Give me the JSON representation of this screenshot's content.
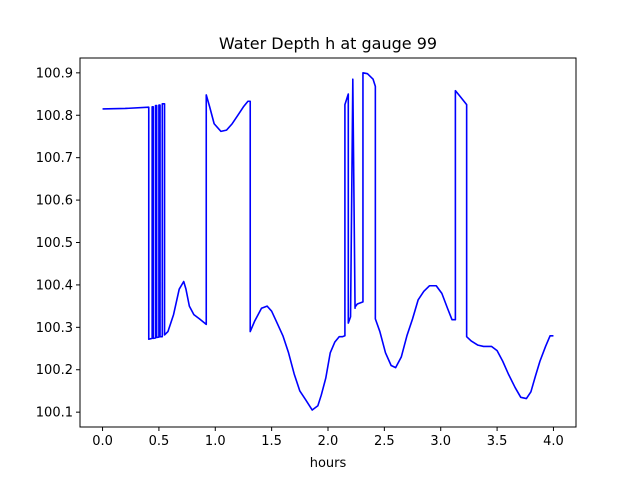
{
  "chart_data": {
    "type": "line",
    "title": "Water Depth h at gauge 99",
    "xlabel": "hours",
    "ylabel": "",
    "xlim": [
      -0.2,
      4.2
    ],
    "ylim": [
      100.065,
      100.935
    ],
    "xticks": [
      0.0,
      0.5,
      1.0,
      1.5,
      2.0,
      2.5,
      3.0,
      3.5,
      4.0
    ],
    "xtick_labels": [
      "0.0",
      "0.5",
      "1.0",
      "1.5",
      "2.0",
      "2.5",
      "3.0",
      "3.5",
      "4.0"
    ],
    "yticks": [
      100.1,
      100.2,
      100.3,
      100.4,
      100.5,
      100.6,
      100.7,
      100.8,
      100.9
    ],
    "ytick_labels": [
      "100.1",
      "100.2",
      "100.3",
      "100.4",
      "100.5",
      "100.6",
      "100.7",
      "100.8",
      "100.9"
    ],
    "grid": false,
    "series": [
      {
        "color": "#0000ff",
        "x": [
          0.0,
          0.2,
          0.41,
          0.41,
          0.44,
          0.44,
          0.45,
          0.45,
          0.47,
          0.47,
          0.48,
          0.48,
          0.5,
          0.5,
          0.51,
          0.51,
          0.53,
          0.53,
          0.55,
          0.55,
          0.58,
          0.63,
          0.68,
          0.72,
          0.74,
          0.77,
          0.81,
          0.86,
          0.92,
          0.92,
          0.95,
          0.99,
          1.05,
          1.1,
          1.15,
          1.2,
          1.25,
          1.29,
          1.31,
          1.31,
          1.35,
          1.41,
          1.46,
          1.5,
          1.54,
          1.6,
          1.65,
          1.7,
          1.75,
          1.8,
          1.86,
          1.91,
          1.94,
          1.98,
          2.02,
          2.06,
          2.1,
          2.13,
          2.15,
          2.15,
          2.18,
          2.18,
          2.2,
          2.22,
          2.22,
          2.24,
          2.24,
          2.26,
          2.31,
          2.31,
          2.35,
          2.4,
          2.42,
          2.42,
          2.46,
          2.51,
          2.56,
          2.6,
          2.65,
          2.7,
          2.75,
          2.8,
          2.85,
          2.9,
          2.96,
          3.01,
          3.06,
          3.1,
          3.13,
          3.13,
          3.17,
          3.23,
          3.23,
          3.27,
          3.33,
          3.38,
          3.45,
          3.5,
          3.55,
          3.6,
          3.66,
          3.71,
          3.76,
          3.8,
          3.84,
          3.88,
          3.93,
          3.97,
          4.0
        ],
        "y": [
          100.815,
          100.816,
          100.819,
          100.272,
          100.274,
          100.82,
          100.82,
          100.274,
          100.275,
          100.823,
          100.823,
          100.276,
          100.277,
          100.824,
          100.824,
          100.278,
          100.278,
          100.827,
          100.827,
          100.282,
          100.29,
          100.33,
          100.39,
          100.408,
          100.39,
          100.35,
          100.33,
          100.32,
          100.307,
          100.848,
          100.82,
          100.78,
          100.762,
          100.765,
          100.78,
          100.8,
          100.82,
          100.833,
          100.833,
          100.29,
          100.315,
          100.345,
          100.35,
          100.338,
          100.315,
          100.28,
          100.24,
          100.19,
          100.15,
          100.13,
          100.105,
          100.115,
          100.14,
          100.18,
          100.24,
          100.265,
          100.278,
          100.278,
          100.28,
          100.825,
          100.85,
          100.31,
          100.325,
          100.88,
          100.885,
          100.345,
          100.348,
          100.355,
          100.36,
          100.9,
          100.898,
          100.885,
          100.868,
          100.32,
          100.29,
          100.24,
          100.21,
          100.205,
          100.23,
          100.28,
          100.32,
          100.365,
          100.385,
          100.398,
          100.398,
          100.38,
          100.345,
          100.318,
          100.318,
          100.858,
          100.845,
          100.825,
          100.278,
          100.268,
          100.258,
          100.255,
          100.255,
          100.245,
          100.22,
          100.19,
          100.158,
          100.135,
          100.132,
          100.148,
          100.185,
          100.22,
          100.255,
          100.28,
          100.28
        ]
      }
    ]
  }
}
